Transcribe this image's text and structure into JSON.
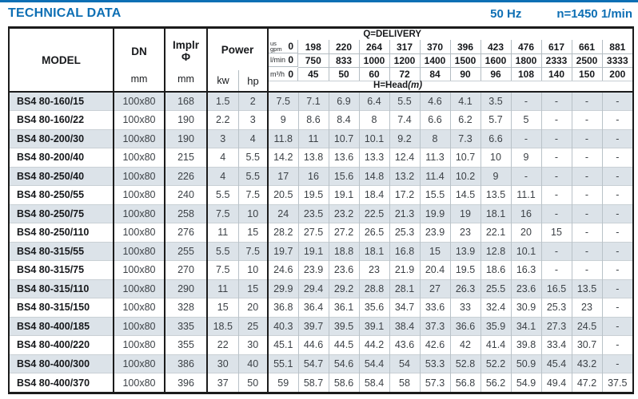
{
  "page": {
    "title": "TECHNICAL DATA",
    "frequency": "50 Hz",
    "speed": "n=1450 1/min"
  },
  "colors": {
    "accent": "#0d6fb4",
    "stripe": "#dce3e9"
  },
  "table": {
    "headers": {
      "model": "MODEL",
      "dn": "DN",
      "impeller_abbr": "Implr",
      "impeller_symbol": "Φ",
      "power": "Power",
      "unit_mm": "mm",
      "unit_kw": "kw",
      "unit_hp": "hp",
      "delivery_title": "Q=DELIVERY",
      "head_title": "H=Head",
      "head_unit": "(m)",
      "gpm_label_line1": "us",
      "gpm_label_line2": "gpm",
      "lmin_label": "l/min",
      "m3h_label": "m³/h",
      "gpm_values": [
        "0",
        "198",
        "220",
        "264",
        "317",
        "370",
        "396",
        "423",
        "476",
        "617",
        "661",
        "881"
      ],
      "lmin_values": [
        "0",
        "750",
        "833",
        "1000",
        "1200",
        "1400",
        "1500",
        "1600",
        "1800",
        "2333",
        "2500",
        "3333"
      ],
      "m3h_values": [
        "0",
        "45",
        "50",
        "60",
        "72",
        "84",
        "90",
        "96",
        "108",
        "140",
        "150",
        "200"
      ]
    },
    "rows": [
      {
        "model": "BS4 80-160/15",
        "dn": "100x80",
        "impeller": "168",
        "kw": "1.5",
        "hp": "2",
        "head": [
          "7.5",
          "7.1",
          "6.9",
          "6.4",
          "5.5",
          "4.6",
          "4.1",
          "3.5",
          "-",
          "-",
          "-",
          "-"
        ]
      },
      {
        "model": "BS4 80-160/22",
        "dn": "100x80",
        "impeller": "190",
        "kw": "2.2",
        "hp": "3",
        "head": [
          "9",
          "8.6",
          "8.4",
          "8",
          "7.4",
          "6.6",
          "6.2",
          "5.7",
          "5",
          "-",
          "-",
          "-"
        ]
      },
      {
        "model": "BS4 80-200/30",
        "dn": "100x80",
        "impeller": "190",
        "kw": "3",
        "hp": "4",
        "head": [
          "11.8",
          "11",
          "10.7",
          "10.1",
          "9.2",
          "8",
          "7.3",
          "6.6",
          "-",
          "-",
          "-",
          "-"
        ]
      },
      {
        "model": "BS4 80-200/40",
        "dn": "100x80",
        "impeller": "215",
        "kw": "4",
        "hp": "5.5",
        "head": [
          "14.2",
          "13.8",
          "13.6",
          "13.3",
          "12.4",
          "11.3",
          "10.7",
          "10",
          "9",
          "-",
          "-",
          "-"
        ]
      },
      {
        "model": "BS4 80-250/40",
        "dn": "100x80",
        "impeller": "226",
        "kw": "4",
        "hp": "5.5",
        "head": [
          "17",
          "16",
          "15.6",
          "14.8",
          "13.2",
          "11.4",
          "10.2",
          "9",
          "-",
          "-",
          "-",
          "-"
        ]
      },
      {
        "model": "BS4 80-250/55",
        "dn": "100x80",
        "impeller": "240",
        "kw": "5.5",
        "hp": "7.5",
        "head": [
          "20.5",
          "19.5",
          "19.1",
          "18.4",
          "17.2",
          "15.5",
          "14.5",
          "13.5",
          "11.1",
          "-",
          "-",
          "-"
        ]
      },
      {
        "model": "BS4 80-250/75",
        "dn": "100x80",
        "impeller": "258",
        "kw": "7.5",
        "hp": "10",
        "head": [
          "24",
          "23.5",
          "23.2",
          "22.5",
          "21.3",
          "19.9",
          "19",
          "18.1",
          "16",
          "-",
          "-",
          "-"
        ]
      },
      {
        "model": "BS4 80-250/110",
        "dn": "100x80",
        "impeller": "276",
        "kw": "11",
        "hp": "15",
        "head": [
          "28.2",
          "27.5",
          "27.2",
          "26.5",
          "25.3",
          "23.9",
          "23",
          "22.1",
          "20",
          "15",
          "-",
          "-"
        ]
      },
      {
        "model": "BS4 80-315/55",
        "dn": "100x80",
        "impeller": "255",
        "kw": "5.5",
        "hp": "7.5",
        "head": [
          "19.7",
          "19.1",
          "18.8",
          "18.1",
          "16.8",
          "15",
          "13.9",
          "12.8",
          "10.1",
          "-",
          "-",
          "-"
        ]
      },
      {
        "model": "BS4 80-315/75",
        "dn": "100x80",
        "impeller": "270",
        "kw": "7.5",
        "hp": "10",
        "head": [
          "24.6",
          "23.9",
          "23.6",
          "23",
          "21.9",
          "20.4",
          "19.5",
          "18.6",
          "16.3",
          "-",
          "-",
          "-"
        ]
      },
      {
        "model": "BS4 80-315/110",
        "dn": "100x80",
        "impeller": "290",
        "kw": "11",
        "hp": "15",
        "head": [
          "29.9",
          "29.4",
          "29.2",
          "28.8",
          "28.1",
          "27",
          "26.3",
          "25.5",
          "23.6",
          "16.5",
          "13.5",
          "-"
        ]
      },
      {
        "model": "BS4 80-315/150",
        "dn": "100x80",
        "impeller": "328",
        "kw": "15",
        "hp": "20",
        "head": [
          "36.8",
          "36.4",
          "36.1",
          "35.6",
          "34.7",
          "33.6",
          "33",
          "32.4",
          "30.9",
          "25.3",
          "23",
          "-"
        ]
      },
      {
        "model": "BS4 80-400/185",
        "dn": "100x80",
        "impeller": "335",
        "kw": "18.5",
        "hp": "25",
        "head": [
          "40.3",
          "39.7",
          "39.5",
          "39.1",
          "38.4",
          "37.3",
          "36.6",
          "35.9",
          "34.1",
          "27.3",
          "24.5",
          "-"
        ]
      },
      {
        "model": "BS4 80-400/220",
        "dn": "100x80",
        "impeller": "355",
        "kw": "22",
        "hp": "30",
        "head": [
          "45.1",
          "44.6",
          "44.5",
          "44.2",
          "43.6",
          "42.6",
          "42",
          "41.4",
          "39.8",
          "33.4",
          "30.7",
          "-"
        ]
      },
      {
        "model": "BS4 80-400/300",
        "dn": "100x80",
        "impeller": "386",
        "kw": "30",
        "hp": "40",
        "head": [
          "55.1",
          "54.7",
          "54.6",
          "54.4",
          "54",
          "53.3",
          "52.8",
          "52.2",
          "50.9",
          "45.4",
          "43.2",
          "-"
        ]
      },
      {
        "model": "BS4 80-400/370",
        "dn": "100x80",
        "impeller": "396",
        "kw": "37",
        "hp": "50",
        "head": [
          "59",
          "58.7",
          "58.6",
          "58.4",
          "58",
          "57.3",
          "56.8",
          "56.2",
          "54.9",
          "49.4",
          "47.2",
          "37.5"
        ]
      }
    ]
  }
}
